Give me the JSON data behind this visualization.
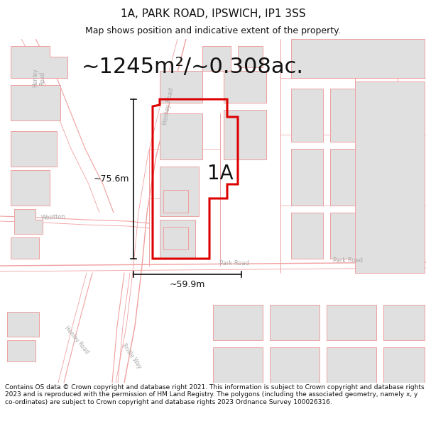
{
  "title": "1A, PARK ROAD, IPSWICH, IP1 3SS",
  "subtitle": "Map shows position and indicative extent of the property.",
  "area_text": "~1245m²/~0.308ac.",
  "label_1a": "1A",
  "dim_vertical": "~75.6m",
  "dim_horizontal": "~59.9m",
  "footer": "Contains OS data © Crown copyright and database right 2021. This information is subject to Crown copyright and database rights 2023 and is reproduced with the permission of HM Land Registry. The polygons (including the associated geometry, namely x, y co-ordinates) are subject to Crown copyright and database rights 2023 Ordnance Survey 100026316.",
  "bg_color": "#ffffff",
  "road_line_color": "#f0a0a0",
  "road_line_lw": 0.8,
  "plot_outline_color": "#dd0000",
  "building_fill": "#e0e0e0",
  "building_edge": "#f0a0a0",
  "text_color": "#111111",
  "road_label_color": "#aaaaaa",
  "dim_color": "#111111",
  "figsize": [
    6.0,
    6.25
  ],
  "dpi": 100,
  "title_fontsize": 11,
  "subtitle_fontsize": 9,
  "area_fontsize": 22,
  "label_fontsize": 20,
  "dim_fontsize": 9,
  "road_label_fontsize": 6,
  "footer_fontsize": 6.5
}
